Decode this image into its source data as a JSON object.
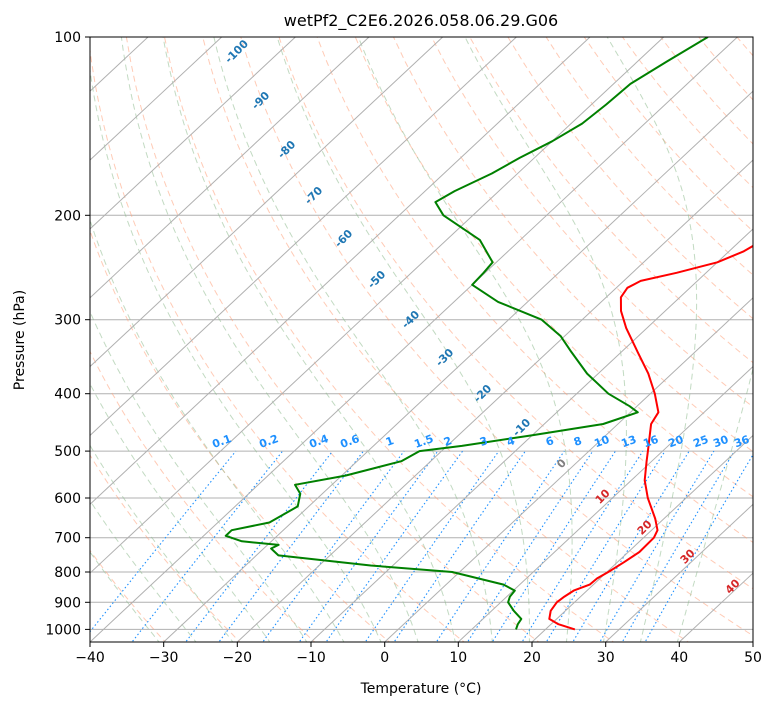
{
  "chart_data": {
    "type": "line",
    "title": "wetPf2_C2E6.2026.058.06.29.G06",
    "xlabel": "Temperature (°C)",
    "ylabel": "Pressure (hPa)",
    "xlim": [
      -40,
      50
    ],
    "ylim": [
      1050,
      100
    ],
    "y_scale": "log",
    "skew_t": true,
    "grid": true,
    "x_ticks": [
      -40,
      -30,
      -20,
      -10,
      0,
      10,
      20,
      30,
      40,
      50
    ],
    "y_ticks": [
      100,
      200,
      300,
      400,
      500,
      600,
      700,
      800,
      900,
      1000
    ],
    "isotherm_labels": [
      -100,
      -90,
      -80,
      -70,
      -60,
      -50,
      -40,
      -30,
      -20,
      -10,
      0,
      10,
      20,
      30,
      40
    ],
    "mixing_ratio_labels": [
      "0.1",
      "0.2",
      "0.4",
      "0.6",
      "1",
      "1.5",
      "2",
      "3",
      "4",
      "6",
      "8",
      "10",
      "13",
      "16",
      "20",
      "25",
      "30",
      "36"
    ],
    "colors": {
      "temperature": "#ff0000",
      "dewpoint": "#008000",
      "isotherm_label_cold": "#1f77b4",
      "isotherm_label_warm": "#d62728",
      "isotherm_label_zero": "#7f7f7f",
      "mixing_ratio": "#1e90ff",
      "dry_adiabat": "#ffa07a",
      "moist_adiabat": "#8fbc8f",
      "grid": "#b0b0b0"
    },
    "series": [
      {
        "name": "Temperature",
        "points": [
          [
            1000,
            24
          ],
          [
            980,
            21
          ],
          [
            960,
            19
          ],
          [
            930,
            18
          ],
          [
            900,
            17.6
          ],
          [
            880,
            17.8
          ],
          [
            860,
            18.2
          ],
          [
            840,
            19.5
          ],
          [
            820,
            19.6
          ],
          [
            800,
            20.2
          ],
          [
            770,
            20.9
          ],
          [
            740,
            21.5
          ],
          [
            700,
            21.4
          ],
          [
            680,
            20.8
          ],
          [
            650,
            18.8
          ],
          [
            600,
            14.8
          ],
          [
            560,
            11.8
          ],
          [
            520,
            9.3
          ],
          [
            500,
            8
          ],
          [
            450,
            4.5
          ],
          [
            430,
            3.8
          ],
          [
            400,
            0.6
          ],
          [
            370,
            -3.2
          ],
          [
            340,
            -7.8
          ],
          [
            310,
            -12.8
          ],
          [
            290,
            -16
          ],
          [
            275,
            -18
          ],
          [
            265,
            -18.5
          ],
          [
            258,
            -17.7
          ],
          [
            250,
            -14
          ],
          [
            240,
            -10
          ],
          [
            230,
            -8
          ],
          [
            220,
            -7
          ],
          [
            200,
            -6.8
          ],
          [
            180,
            -9
          ],
          [
            160,
            -13.2
          ],
          [
            140,
            -18.8
          ],
          [
            125,
            -24.5
          ],
          [
            115,
            -27.5
          ],
          [
            108,
            -28.3
          ],
          [
            100,
            -30.5
          ]
        ]
      },
      {
        "name": "Dewpoint",
        "points": [
          [
            1000,
            16
          ],
          [
            980,
            15.5
          ],
          [
            960,
            15.2
          ],
          [
            930,
            13
          ],
          [
            900,
            11
          ],
          [
            880,
            10.4
          ],
          [
            860,
            10.2
          ],
          [
            840,
            7.8
          ],
          [
            800,
            -1
          ],
          [
            780,
            -13
          ],
          [
            750,
            -27
          ],
          [
            730,
            -29
          ],
          [
            720,
            -28.5
          ],
          [
            710,
            -34
          ],
          [
            695,
            -37
          ],
          [
            680,
            -37
          ],
          [
            660,
            -33
          ],
          [
            620,
            -31.5
          ],
          [
            590,
            -33
          ],
          [
            570,
            -35
          ],
          [
            550,
            -29.5
          ],
          [
            520,
            -24
          ],
          [
            500,
            -23
          ],
          [
            490,
            -18
          ],
          [
            470,
            -10
          ],
          [
            450,
            -2
          ],
          [
            430,
            1
          ],
          [
            420,
            -1
          ],
          [
            400,
            -5.7
          ],
          [
            370,
            -11.5
          ],
          [
            340,
            -16.8
          ],
          [
            320,
            -20.5
          ],
          [
            300,
            -25.5
          ],
          [
            280,
            -34
          ],
          [
            262,
            -40
          ],
          [
            250,
            -40.2
          ],
          [
            240,
            -40.5
          ],
          [
            220,
            -45.5
          ],
          [
            200,
            -54
          ],
          [
            190,
            -57
          ],
          [
            182,
            -56
          ],
          [
            170,
            -53.5
          ],
          [
            160,
            -52
          ],
          [
            150,
            -50
          ],
          [
            140,
            -48.5
          ],
          [
            130,
            -48
          ],
          [
            120,
            -47.7
          ],
          [
            110,
            -46
          ],
          [
            100,
            -44
          ]
        ]
      }
    ]
  }
}
